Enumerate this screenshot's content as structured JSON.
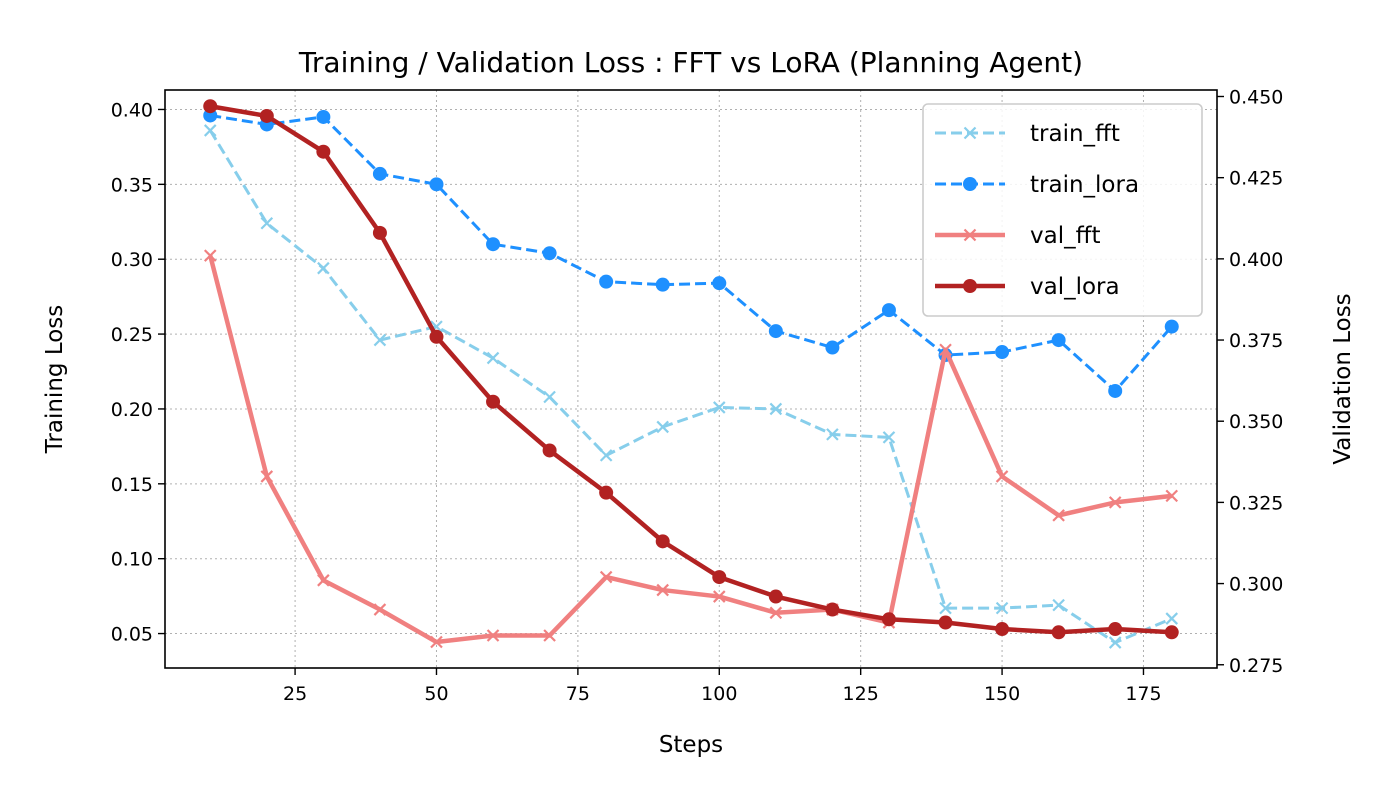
{
  "chart_data": {
    "type": "line",
    "title": "Training / Validation Loss : FFT vs LoRA (Planning Agent)",
    "xlabel": "Steps",
    "ylabel_left": "Training Loss",
    "ylabel_right": "Validation Loss",
    "grid": true,
    "legend_position": "top-right",
    "x": [
      10,
      20,
      30,
      40,
      50,
      60,
      70,
      80,
      90,
      100,
      110,
      120,
      130,
      140,
      150,
      160,
      170,
      180
    ],
    "x_ticks": [
      25,
      50,
      75,
      100,
      125,
      150,
      175
    ],
    "xlim": [
      2,
      188
    ],
    "left_axis": {
      "ylim": [
        0.027,
        0.413
      ],
      "ticks": [
        0.05,
        0.1,
        0.15,
        0.2,
        0.25,
        0.3,
        0.35,
        0.4
      ],
      "tick_labels": [
        "0.05",
        "0.10",
        "0.15",
        "0.20",
        "0.25",
        "0.30",
        "0.35",
        "0.40"
      ]
    },
    "right_axis": {
      "ylim": [
        0.274,
        0.452
      ],
      "ticks": [
        0.275,
        0.3,
        0.325,
        0.35,
        0.375,
        0.4,
        0.425,
        0.45
      ],
      "tick_labels": [
        "0.275",
        "0.300",
        "0.325",
        "0.350",
        "0.375",
        "0.400",
        "0.425",
        "0.450"
      ]
    },
    "series": [
      {
        "name": "train_fft",
        "axis": "left",
        "color": "#87ceeb",
        "line_style": "dashed",
        "marker": "x",
        "values": [
          0.386,
          0.324,
          0.294,
          0.246,
          0.255,
          0.234,
          0.208,
          0.169,
          0.188,
          0.201,
          0.2,
          0.183,
          0.181,
          0.067,
          0.067,
          0.069,
          0.044,
          0.06
        ]
      },
      {
        "name": "train_lora",
        "axis": "left",
        "color": "#1e90ff",
        "line_style": "dashed",
        "marker": "circle",
        "values": [
          0.396,
          0.39,
          0.395,
          0.357,
          0.35,
          0.31,
          0.304,
          0.285,
          0.283,
          0.284,
          0.252,
          0.241,
          0.266,
          0.236,
          0.238,
          0.246,
          0.212,
          0.255
        ]
      },
      {
        "name": "val_fft",
        "axis": "right",
        "color": "#f08080",
        "line_style": "solid",
        "marker": "x",
        "values": [
          0.401,
          0.333,
          0.301,
          0.292,
          0.282,
          0.284,
          0.284,
          0.302,
          0.298,
          0.296,
          0.291,
          0.292,
          0.288,
          0.372,
          0.333,
          0.321,
          0.325,
          0.327
        ]
      },
      {
        "name": "val_lora",
        "axis": "right",
        "color": "#b22222",
        "line_style": "solid",
        "marker": "circle",
        "values": [
          0.447,
          0.444,
          0.433,
          0.408,
          0.376,
          0.356,
          0.341,
          0.328,
          0.313,
          0.302,
          0.296,
          0.292,
          0.289,
          0.288,
          0.286,
          0.285,
          0.286,
          0.285
        ]
      }
    ]
  }
}
